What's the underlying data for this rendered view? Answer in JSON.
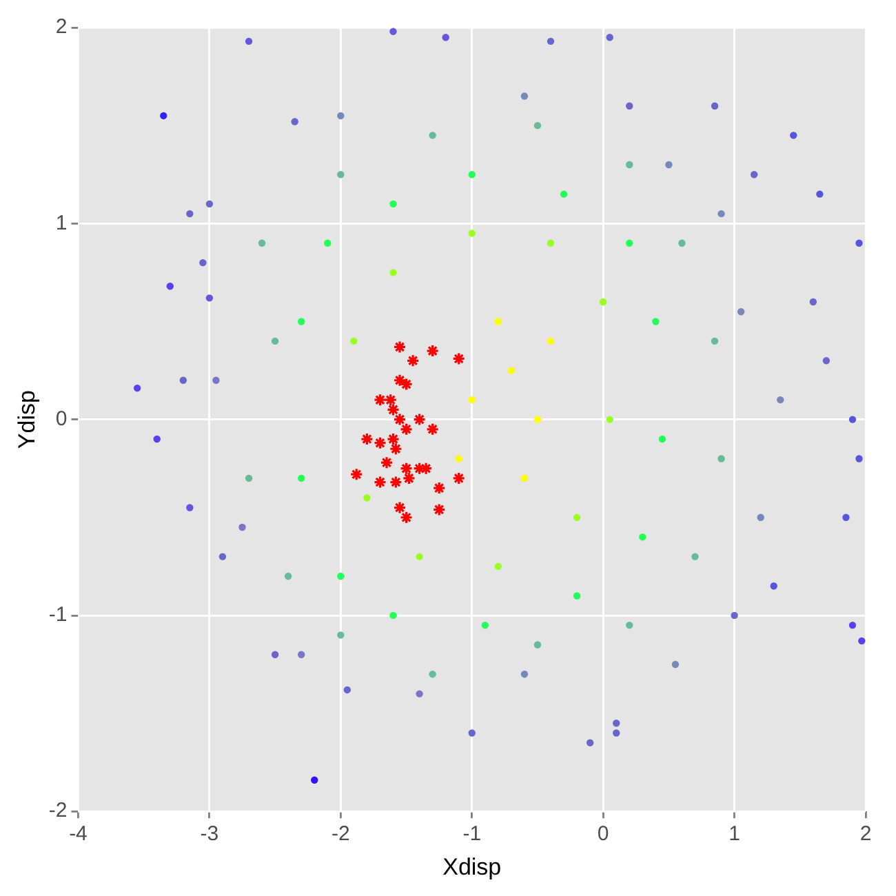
{
  "chart_data": {
    "type": "scatter",
    "xlabel": "Xdisp",
    "ylabel": "Ydisp",
    "xlim": [
      -4,
      2
    ],
    "xticks": [
      -4,
      -3,
      -2,
      -1,
      0,
      1,
      2
    ],
    "ylim": [
      -2,
      2
    ],
    "yticks": [
      -2,
      -1,
      0,
      1,
      2
    ],
    "grid": true,
    "marker": "circle",
    "series": [
      {
        "x": [
          -3.35,
          -2.7,
          -2.2,
          -3.55,
          -3.4,
          -3.3,
          -3.0,
          -3.15,
          -2.9,
          -2.5,
          -1.95,
          -1.0,
          -0.1,
          0.1,
          0.1,
          1.0,
          1.3,
          1.9,
          1.97,
          1.85,
          1.95,
          1.9,
          1.7,
          1.6,
          1.95,
          1.65,
          1.45,
          1.15,
          0.85,
          0.2,
          -1.6,
          -1.2,
          -0.4,
          0.05,
          -2.35,
          -3.15,
          -3.0,
          -3.05,
          -2.95,
          -3.2,
          -2.75,
          -2.3,
          -1.4,
          -0.6,
          0.55,
          1.2,
          1.35,
          1.05,
          0.9,
          0.5,
          -0.6,
          -2.0,
          -2.6,
          -2.7,
          -2.4,
          -2.0,
          -1.3,
          -0.5,
          0.2,
          0.7,
          0.9,
          0.85,
          0.6,
          0.2,
          -0.5,
          -1.3,
          -2.0,
          -2.5,
          -2.3,
          -2.3,
          -2.0,
          -1.6,
          -0.9,
          -0.2,
          0.3,
          0.45,
          0.4,
          0.2,
          -0.3,
          -1.0,
          -1.6,
          -2.1,
          -1.9,
          -1.8,
          -1.4,
          -0.8,
          -0.2,
          0.05,
          0.0,
          -0.4,
          -1.0,
          -1.6,
          -0.7,
          -1.0,
          -0.5,
          -0.8,
          -0.4,
          -1.1,
          -0.6
        ],
        "values": [
          1.55,
          1.93,
          -1.84,
          0.16,
          -0.1,
          0.68,
          0.62,
          -0.45,
          -0.7,
          -1.2,
          -1.38,
          -1.6,
          -1.65,
          -1.55,
          -1.6,
          -1.0,
          -0.85,
          -1.05,
          -1.13,
          -0.5,
          -0.2,
          0.0,
          0.3,
          0.6,
          0.9,
          1.15,
          1.45,
          1.25,
          1.6,
          1.6,
          1.98,
          1.95,
          1.93,
          1.95,
          1.52,
          1.05,
          1.1,
          0.8,
          0.2,
          0.2,
          -0.55,
          -1.2,
          -1.4,
          -1.3,
          -1.25,
          -0.5,
          0.1,
          0.55,
          1.05,
          1.3,
          1.65,
          1.55,
          0.9,
          -0.3,
          -0.8,
          -1.1,
          -1.3,
          -1.15,
          -1.05,
          -0.7,
          -0.2,
          0.4,
          0.9,
          1.3,
          1.5,
          1.45,
          1.25,
          0.4,
          0.5,
          -0.3,
          -0.8,
          -1.0,
          -1.05,
          -0.9,
          -0.6,
          -0.1,
          0.5,
          0.9,
          1.15,
          1.25,
          1.1,
          0.9,
          0.4,
          -0.4,
          -0.7,
          -0.75,
          -0.5,
          0.0,
          0.6,
          0.9,
          0.95,
          0.75,
          0.25,
          0.1,
          0.0,
          0.5,
          0.4,
          -0.2,
          -0.3
        ],
        "colors": [
          "#3322ff",
          "#6655dd",
          "#3311ff",
          "#5544ee",
          "#5544ee",
          "#5544ee",
          "#6655dd",
          "#6655dd",
          "#6666cc",
          "#6666cc",
          "#6666cc",
          "#6666cc",
          "#6666cc",
          "#6666cc",
          "#6666cc",
          "#6666cc",
          "#5555dd",
          "#5544ee",
          "#5544ee",
          "#5555dd",
          "#5555dd",
          "#5555dd",
          "#6666cc",
          "#6666cc",
          "#5555dd",
          "#5555dd",
          "#5555dd",
          "#6666cc",
          "#6666cc",
          "#6666cc",
          "#6655dd",
          "#6655dd",
          "#6666cc",
          "#6666cc",
          "#6666cc",
          "#6666cc",
          "#6666cc",
          "#6666cc",
          "#7777cc",
          "#6666cc",
          "#7777cc",
          "#7777cc",
          "#7777cc",
          "#7788bb",
          "#7788bb",
          "#7788bb",
          "#7788bb",
          "#7788bb",
          "#7788bb",
          "#7788bb",
          "#7788bb",
          "#7788bb",
          "#66bb99",
          "#66bb99",
          "#66bb99",
          "#66bb99",
          "#66bb99",
          "#66bb99",
          "#66bb99",
          "#66bb99",
          "#66bb99",
          "#66bb99",
          "#66bb99",
          "#66bb99",
          "#66bb99",
          "#66bb99",
          "#66bb99",
          "#66bb99",
          "#22ff55",
          "#22ff55",
          "#22ff55",
          "#22ff55",
          "#22ff55",
          "#22ff55",
          "#22ff55",
          "#22ff55",
          "#22ff55",
          "#22ff55",
          "#22ff55",
          "#22ff55",
          "#22ff55",
          "#22ff55",
          "#99ff22",
          "#99ff22",
          "#99ff22",
          "#99ff22",
          "#99ff22",
          "#99ff22",
          "#99ff22",
          "#99ff22",
          "#99ff22",
          "#99ff22",
          "#ffff00",
          "#ffff00",
          "#ffff00",
          "#ffff00",
          "#ffff00",
          "#ffff00",
          "#ffff00"
        ]
      },
      {
        "color": "#ff0000",
        "marker": "cross",
        "x": [
          -1.55,
          -1.3,
          -1.1,
          -1.45,
          -1.55,
          -1.5,
          -1.62,
          -1.6,
          -1.7,
          -1.55,
          -1.4,
          -1.3,
          -1.5,
          -1.6,
          -1.8,
          -1.7,
          -1.58,
          -1.5,
          -1.4,
          -1.35,
          -1.65,
          -1.88,
          -1.7,
          -1.58,
          -1.48,
          -1.25,
          -1.1,
          -1.55,
          -1.25,
          -1.5
        ],
        "values": [
          0.37,
          0.35,
          0.31,
          0.3,
          0.2,
          0.18,
          0.1,
          0.05,
          0.1,
          0.0,
          0.0,
          -0.05,
          -0.05,
          -0.1,
          -0.1,
          -0.12,
          -0.15,
          -0.25,
          -0.25,
          -0.25,
          -0.22,
          -0.28,
          -0.32,
          -0.32,
          -0.3,
          -0.35,
          -0.3,
          -0.45,
          -0.46,
          -0.5
        ]
      }
    ]
  }
}
